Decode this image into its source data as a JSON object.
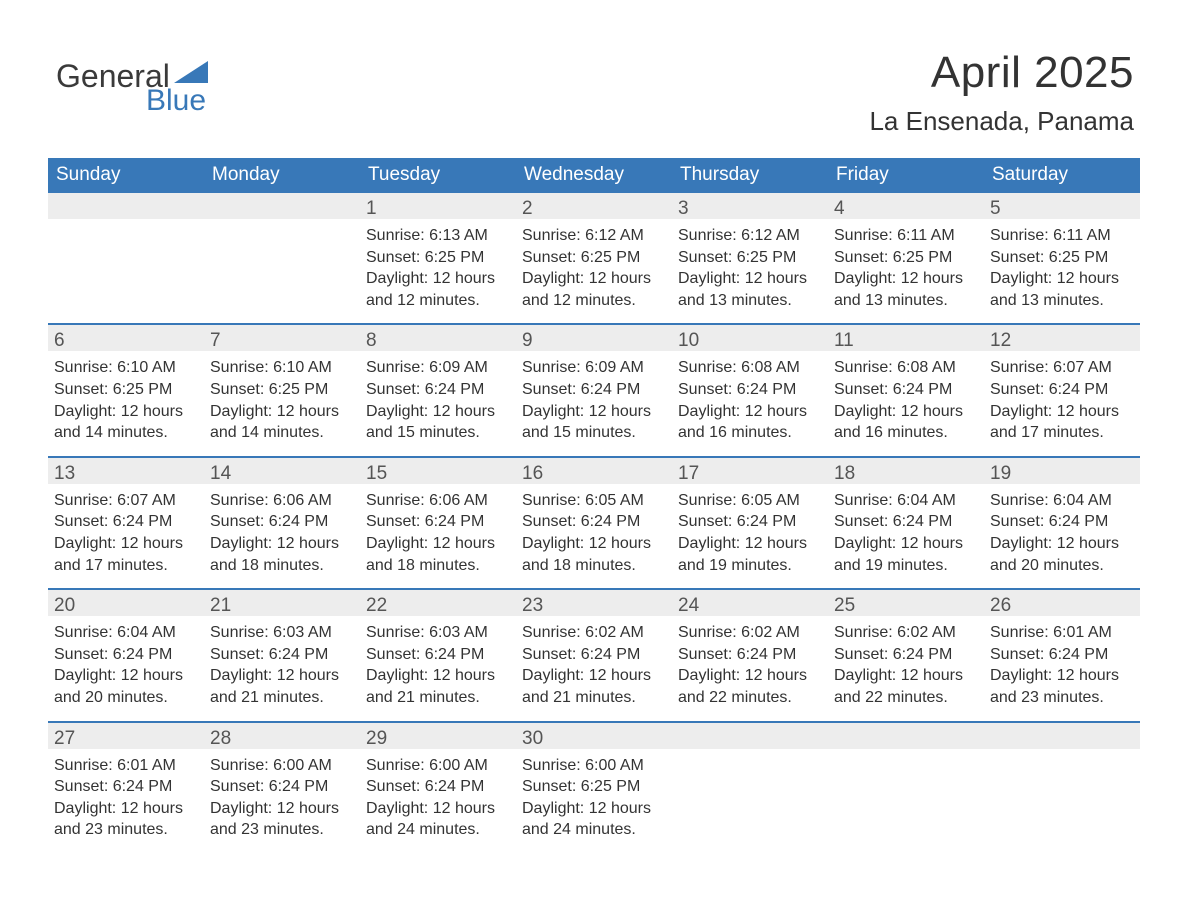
{
  "logo": {
    "word1": "General",
    "word2": "Blue",
    "word1_color": "#3a3a3a",
    "word2_color": "#3878b8",
    "flag_color": "#3878b8"
  },
  "title": {
    "month": "April 2025",
    "location": "La Ensenada, Panama",
    "month_fontsize": 44,
    "location_fontsize": 26,
    "text_color": "#333333"
  },
  "colors": {
    "header_bg": "#3878b8",
    "header_text": "#ffffff",
    "daynum_bg": "#ededed",
    "daynum_text": "#555555",
    "body_text": "#333333",
    "week_separator": "#3878b8",
    "page_bg": "#ffffff"
  },
  "layout": {
    "columns": 7,
    "day_header_fontsize": 19,
    "cell_fontsize": 16
  },
  "day_headers": [
    "Sunday",
    "Monday",
    "Tuesday",
    "Wednesday",
    "Thursday",
    "Friday",
    "Saturday"
  ],
  "weeks": [
    [
      null,
      null,
      {
        "n": "1",
        "sunrise": "Sunrise: 6:13 AM",
        "sunset": "Sunset: 6:25 PM",
        "daylight": "Daylight: 12 hours and 12 minutes."
      },
      {
        "n": "2",
        "sunrise": "Sunrise: 6:12 AM",
        "sunset": "Sunset: 6:25 PM",
        "daylight": "Daylight: 12 hours and 12 minutes."
      },
      {
        "n": "3",
        "sunrise": "Sunrise: 6:12 AM",
        "sunset": "Sunset: 6:25 PM",
        "daylight": "Daylight: 12 hours and 13 minutes."
      },
      {
        "n": "4",
        "sunrise": "Sunrise: 6:11 AM",
        "sunset": "Sunset: 6:25 PM",
        "daylight": "Daylight: 12 hours and 13 minutes."
      },
      {
        "n": "5",
        "sunrise": "Sunrise: 6:11 AM",
        "sunset": "Sunset: 6:25 PM",
        "daylight": "Daylight: 12 hours and 13 minutes."
      }
    ],
    [
      {
        "n": "6",
        "sunrise": "Sunrise: 6:10 AM",
        "sunset": "Sunset: 6:25 PM",
        "daylight": "Daylight: 12 hours and 14 minutes."
      },
      {
        "n": "7",
        "sunrise": "Sunrise: 6:10 AM",
        "sunset": "Sunset: 6:25 PM",
        "daylight": "Daylight: 12 hours and 14 minutes."
      },
      {
        "n": "8",
        "sunrise": "Sunrise: 6:09 AM",
        "sunset": "Sunset: 6:24 PM",
        "daylight": "Daylight: 12 hours and 15 minutes."
      },
      {
        "n": "9",
        "sunrise": "Sunrise: 6:09 AM",
        "sunset": "Sunset: 6:24 PM",
        "daylight": "Daylight: 12 hours and 15 minutes."
      },
      {
        "n": "10",
        "sunrise": "Sunrise: 6:08 AM",
        "sunset": "Sunset: 6:24 PM",
        "daylight": "Daylight: 12 hours and 16 minutes."
      },
      {
        "n": "11",
        "sunrise": "Sunrise: 6:08 AM",
        "sunset": "Sunset: 6:24 PM",
        "daylight": "Daylight: 12 hours and 16 minutes."
      },
      {
        "n": "12",
        "sunrise": "Sunrise: 6:07 AM",
        "sunset": "Sunset: 6:24 PM",
        "daylight": "Daylight: 12 hours and 17 minutes."
      }
    ],
    [
      {
        "n": "13",
        "sunrise": "Sunrise: 6:07 AM",
        "sunset": "Sunset: 6:24 PM",
        "daylight": "Daylight: 12 hours and 17 minutes."
      },
      {
        "n": "14",
        "sunrise": "Sunrise: 6:06 AM",
        "sunset": "Sunset: 6:24 PM",
        "daylight": "Daylight: 12 hours and 18 minutes."
      },
      {
        "n": "15",
        "sunrise": "Sunrise: 6:06 AM",
        "sunset": "Sunset: 6:24 PM",
        "daylight": "Daylight: 12 hours and 18 minutes."
      },
      {
        "n": "16",
        "sunrise": "Sunrise: 6:05 AM",
        "sunset": "Sunset: 6:24 PM",
        "daylight": "Daylight: 12 hours and 18 minutes."
      },
      {
        "n": "17",
        "sunrise": "Sunrise: 6:05 AM",
        "sunset": "Sunset: 6:24 PM",
        "daylight": "Daylight: 12 hours and 19 minutes."
      },
      {
        "n": "18",
        "sunrise": "Sunrise: 6:04 AM",
        "sunset": "Sunset: 6:24 PM",
        "daylight": "Daylight: 12 hours and 19 minutes."
      },
      {
        "n": "19",
        "sunrise": "Sunrise: 6:04 AM",
        "sunset": "Sunset: 6:24 PM",
        "daylight": "Daylight: 12 hours and 20 minutes."
      }
    ],
    [
      {
        "n": "20",
        "sunrise": "Sunrise: 6:04 AM",
        "sunset": "Sunset: 6:24 PM",
        "daylight": "Daylight: 12 hours and 20 minutes."
      },
      {
        "n": "21",
        "sunrise": "Sunrise: 6:03 AM",
        "sunset": "Sunset: 6:24 PM",
        "daylight": "Daylight: 12 hours and 21 minutes."
      },
      {
        "n": "22",
        "sunrise": "Sunrise: 6:03 AM",
        "sunset": "Sunset: 6:24 PM",
        "daylight": "Daylight: 12 hours and 21 minutes."
      },
      {
        "n": "23",
        "sunrise": "Sunrise: 6:02 AM",
        "sunset": "Sunset: 6:24 PM",
        "daylight": "Daylight: 12 hours and 21 minutes."
      },
      {
        "n": "24",
        "sunrise": "Sunrise: 6:02 AM",
        "sunset": "Sunset: 6:24 PM",
        "daylight": "Daylight: 12 hours and 22 minutes."
      },
      {
        "n": "25",
        "sunrise": "Sunrise: 6:02 AM",
        "sunset": "Sunset: 6:24 PM",
        "daylight": "Daylight: 12 hours and 22 minutes."
      },
      {
        "n": "26",
        "sunrise": "Sunrise: 6:01 AM",
        "sunset": "Sunset: 6:24 PM",
        "daylight": "Daylight: 12 hours and 23 minutes."
      }
    ],
    [
      {
        "n": "27",
        "sunrise": "Sunrise: 6:01 AM",
        "sunset": "Sunset: 6:24 PM",
        "daylight": "Daylight: 12 hours and 23 minutes."
      },
      {
        "n": "28",
        "sunrise": "Sunrise: 6:00 AM",
        "sunset": "Sunset: 6:24 PM",
        "daylight": "Daylight: 12 hours and 23 minutes."
      },
      {
        "n": "29",
        "sunrise": "Sunrise: 6:00 AM",
        "sunset": "Sunset: 6:24 PM",
        "daylight": "Daylight: 12 hours and 24 minutes."
      },
      {
        "n": "30",
        "sunrise": "Sunrise: 6:00 AM",
        "sunset": "Sunset: 6:25 PM",
        "daylight": "Daylight: 12 hours and 24 minutes."
      },
      null,
      null,
      null
    ]
  ]
}
